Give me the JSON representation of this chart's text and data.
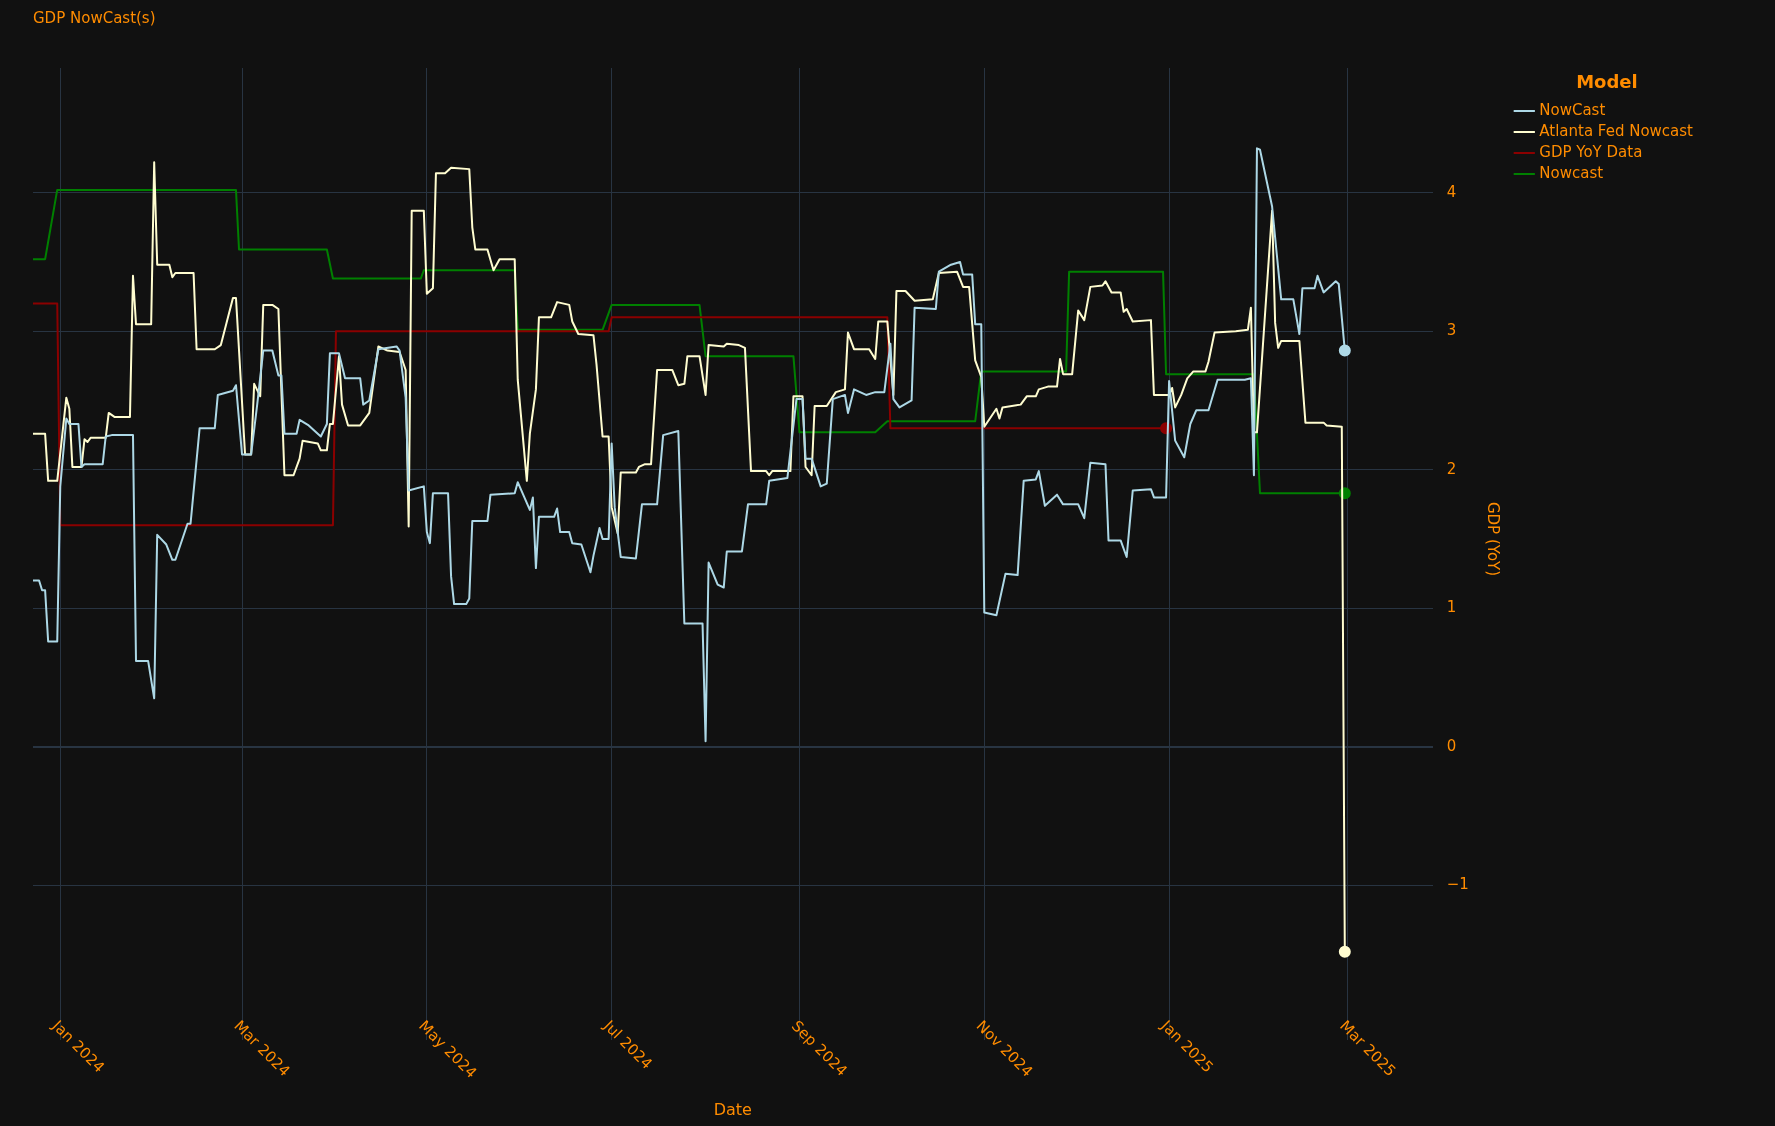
{
  "chart_data": {
    "type": "line",
    "title": "GDP NowCast(s)",
    "xlabel": "Date",
    "ylabel": "GDP (YoY)",
    "legend_title": "Model",
    "legend": "top right",
    "grid": true,
    "line_style": "solid",
    "xlim": [
      "2023-12-23",
      "2025-03-29"
    ],
    "xticks": [
      {
        "value": "2024-01-01",
        "label": "Jan 2024"
      },
      {
        "value": "2024-03-01",
        "label": "Mar 2024"
      },
      {
        "value": "2024-05-01",
        "label": "May 2024"
      },
      {
        "value": "2024-07-01",
        "label": "Jul 2024"
      },
      {
        "value": "2024-09-01",
        "label": "Sep 2024"
      },
      {
        "value": "2024-11-01",
        "label": "Nov 2024"
      },
      {
        "value": "2025-01-01",
        "label": "Jan 2025"
      },
      {
        "value": "2025-03-01",
        "label": "Mar 2025"
      }
    ],
    "ylim": [
      -1.9,
      4.9
    ],
    "yticks": [
      {
        "value": -1,
        "label": "−1"
      },
      0,
      1,
      2,
      3,
      4
    ],
    "series": [
      {
        "name": "NowCast",
        "color": "#add8e6",
        "x": [
          "2023-12-23",
          "2023-12-25",
          "2023-12-26",
          "2023-12-27",
          "2023-12-28",
          "2023-12-31",
          "2024-01-01",
          "2024-01-03",
          "2024-01-04",
          "2024-01-07",
          "2024-01-08",
          "2024-01-09",
          "2024-01-15",
          "2024-01-16",
          "2024-01-18",
          "2024-01-25",
          "2024-01-26",
          "2024-01-30",
          "2024-02-01",
          "2024-02-02",
          "2024-02-05",
          "2024-02-07",
          "2024-02-08",
          "2024-02-12",
          "2024-02-13",
          "2024-02-16",
          "2024-02-21",
          "2024-02-22",
          "2024-02-27",
          "2024-02-28",
          "2024-03-01",
          "2024-03-04",
          "2024-03-06",
          "2024-03-08",
          "2024-03-11",
          "2024-03-13",
          "2024-03-14",
          "2024-03-15",
          "2024-03-19",
          "2024-03-20",
          "2024-03-23",
          "2024-03-27",
          "2024-03-29",
          "2024-03-30",
          "2024-04-02",
          "2024-04-04",
          "2024-04-09",
          "2024-04-10",
          "2024-04-12",
          "2024-04-15",
          "2024-04-21",
          "2024-04-22",
          "2024-04-24",
          "2024-04-25",
          "2024-04-30",
          "2024-05-01",
          "2024-05-02",
          "2024-05-03",
          "2024-05-08",
          "2024-05-09",
          "2024-05-10",
          "2024-05-14",
          "2024-05-15",
          "2024-05-16",
          "2024-05-21",
          "2024-05-22",
          "2024-05-30",
          "2024-05-31",
          "2024-06-04",
          "2024-06-05",
          "2024-06-06",
          "2024-06-07",
          "2024-06-12",
          "2024-06-13",
          "2024-06-14",
          "2024-06-17",
          "2024-06-18",
          "2024-06-21",
          "2024-06-24",
          "2024-06-25",
          "2024-06-27",
          "2024-06-28",
          "2024-06-30",
          "2024-07-01",
          "2024-07-02",
          "2024-07-04",
          "2024-07-09",
          "2024-07-11",
          "2024-07-16",
          "2024-07-18",
          "2024-07-23",
          "2024-07-25",
          "2024-07-31",
          "2024-08-01",
          "2024-08-02",
          "2024-08-05",
          "2024-08-07",
          "2024-08-08",
          "2024-08-13",
          "2024-08-15",
          "2024-08-21",
          "2024-08-22",
          "2024-08-28",
          "2024-08-31",
          "2024-09-02",
          "2024-09-03",
          "2024-09-05",
          "2024-09-08",
          "2024-09-10",
          "2024-09-12",
          "2024-09-16",
          "2024-09-17",
          "2024-09-19",
          "2024-09-23",
          "2024-09-26",
          "2024-09-29",
          "2024-10-01",
          "2024-10-02",
          "2024-10-04",
          "2024-10-08",
          "2024-10-09",
          "2024-10-16",
          "2024-10-17",
          "2024-10-21",
          "2024-10-24",
          "2024-10-25",
          "2024-10-28",
          "2024-10-29",
          "2024-10-31",
          "2024-11-01",
          "2024-11-05",
          "2024-11-08",
          "2024-11-12",
          "2024-11-14",
          "2024-11-18",
          "2024-11-19",
          "2024-11-21",
          "2024-11-25",
          "2024-11-27",
          "2024-12-02",
          "2024-12-04",
          "2024-12-06",
          "2024-12-11",
          "2024-12-12",
          "2024-12-16",
          "2024-12-18",
          "2024-12-20",
          "2024-12-26",
          "2024-12-27",
          "2024-12-31",
          "2025-01-01",
          "2025-01-03",
          "2025-01-06",
          "2025-01-08",
          "2025-01-10",
          "2025-01-14",
          "2025-01-17",
          "2025-01-26",
          "2025-01-28",
          "2025-01-29",
          "2025-01-30",
          "2025-01-31",
          "2025-02-04",
          "2025-02-07",
          "2025-02-11",
          "2025-02-13",
          "2025-02-14",
          "2025-02-18",
          "2025-02-19",
          "2025-02-21",
          "2025-02-25",
          "2025-02-26",
          "2025-02-28"
        ],
        "values": [
          1.2,
          1.2,
          1.13,
          1.13,
          0.76,
          0.76,
          1.88,
          2.37,
          2.33,
          2.33,
          2.02,
          2.04,
          2.04,
          2.24,
          2.25,
          2.25,
          0.62,
          0.62,
          0.35,
          1.53,
          1.46,
          1.35,
          1.35,
          1.61,
          1.61,
          2.3,
          2.3,
          2.54,
          2.57,
          2.61,
          2.11,
          2.11,
          2.47,
          2.86,
          2.86,
          2.68,
          2.68,
          2.26,
          2.26,
          2.36,
          2.32,
          2.24,
          2.33,
          2.84,
          2.84,
          2.66,
          2.66,
          2.47,
          2.5,
          2.87,
          2.89,
          2.86,
          2.52,
          1.85,
          1.88,
          1.55,
          1.47,
          1.83,
          1.83,
          1.23,
          1.03,
          1.03,
          1.07,
          1.63,
          1.63,
          1.82,
          1.83,
          1.91,
          1.71,
          1.8,
          1.29,
          1.66,
          1.66,
          1.72,
          1.55,
          1.55,
          1.47,
          1.46,
          1.26,
          1.38,
          1.58,
          1.5,
          1.5,
          2.19,
          1.73,
          1.37,
          1.36,
          1.75,
          1.75,
          2.25,
          2.28,
          0.89,
          0.89,
          0.04,
          1.33,
          1.17,
          1.15,
          1.41,
          1.41,
          1.75,
          1.75,
          1.92,
          1.94,
          2.51,
          2.51,
          2.08,
          2.08,
          1.88,
          1.9,
          2.51,
          2.54,
          2.41,
          2.58,
          2.54,
          2.56,
          2.56,
          2.91,
          2.51,
          2.45,
          2.5,
          3.17,
          3.16,
          3.43,
          3.48,
          3.5,
          3.41,
          3.41,
          3.05,
          3.05,
          0.97,
          0.95,
          1.25,
          1.24,
          1.92,
          1.93,
          1.99,
          1.74,
          1.82,
          1.75,
          1.75,
          1.65,
          2.05,
          2.04,
          1.49,
          1.49,
          1.37,
          1.85,
          1.86,
          1.8,
          1.8,
          2.64,
          2.21,
          2.09,
          2.33,
          2.43,
          2.43,
          2.65,
          2.65,
          2.66,
          1.96,
          4.32,
          4.31,
          3.9,
          3.23,
          3.23,
          2.98,
          3.31,
          3.31,
          3.4,
          3.28,
          3.36,
          3.34,
          2.86
        ]
      },
      {
        "name": "Atlanta Fed Nowcast",
        "color": "#fffdd0",
        "x": [
          "2023-12-23",
          "2023-12-27",
          "2023-12-28",
          "2023-12-31",
          "2024-01-03",
          "2024-01-04",
          "2024-01-05",
          "2024-01-08",
          "2024-01-09",
          "2024-01-10",
          "2024-01-11",
          "2024-01-16",
          "2024-01-17",
          "2024-01-19",
          "2024-01-24",
          "2024-01-25",
          "2024-01-26",
          "2024-01-31",
          "2024-02-01",
          "2024-02-02",
          "2024-02-06",
          "2024-02-07",
          "2024-02-08",
          "2024-02-14",
          "2024-02-15",
          "2024-02-21",
          "2024-02-23",
          "2024-02-27",
          "2024-02-28",
          "2024-03-02",
          "2024-03-04",
          "2024-03-05",
          "2024-03-07",
          "2024-03-08",
          "2024-03-11",
          "2024-03-13",
          "2024-03-15",
          "2024-03-18",
          "2024-03-20",
          "2024-03-21",
          "2024-03-26",
          "2024-03-27",
          "2024-03-29",
          "2024-03-30",
          "2024-03-31",
          "2024-04-02",
          "2024-04-03",
          "2024-04-05",
          "2024-04-09",
          "2024-04-12",
          "2024-04-15",
          "2024-04-18",
          "2024-04-22",
          "2024-04-24",
          "2024-04-25",
          "2024-04-26",
          "2024-04-30",
          "2024-05-01",
          "2024-05-03",
          "2024-05-04",
          "2024-05-07",
          "2024-05-09",
          "2024-05-15",
          "2024-05-16",
          "2024-05-17",
          "2024-05-21",
          "2024-05-23",
          "2024-05-25",
          "2024-05-30",
          "2024-05-31",
          "2024-06-03",
          "2024-06-04",
          "2024-06-06",
          "2024-06-07",
          "2024-06-11",
          "2024-06-13",
          "2024-06-17",
          "2024-06-18",
          "2024-06-20",
          "2024-06-25",
          "2024-06-26",
          "2024-06-28",
          "2024-06-30",
          "2024-07-01",
          "2024-07-03",
          "2024-07-04",
          "2024-07-09",
          "2024-07-10",
          "2024-07-12",
          "2024-07-14",
          "2024-07-16",
          "2024-07-21",
          "2024-07-23",
          "2024-07-25",
          "2024-07-26",
          "2024-07-30",
          "2024-08-01",
          "2024-08-02",
          "2024-08-07",
          "2024-08-08",
          "2024-08-12",
          "2024-08-14",
          "2024-08-16",
          "2024-08-21",
          "2024-08-22",
          "2024-08-23",
          "2024-08-29",
          "2024-08-30",
          "2024-09-02",
          "2024-09-03",
          "2024-09-05",
          "2024-09-06",
          "2024-09-10",
          "2024-09-13",
          "2024-09-16",
          "2024-09-17",
          "2024-09-19",
          "2024-09-24",
          "2024-09-26",
          "2024-09-27",
          "2024-09-30",
          "2024-10-02",
          "2024-10-03",
          "2024-10-06",
          "2024-10-09",
          "2024-10-15",
          "2024-10-17",
          "2024-10-23",
          "2024-10-25",
          "2024-10-27",
          "2024-10-29",
          "2024-10-31",
          "2024-11-01",
          "2024-11-05",
          "2024-11-06",
          "2024-11-07",
          "2024-11-13",
          "2024-11-15",
          "2024-11-18",
          "2024-11-19",
          "2024-11-22",
          "2024-11-25",
          "2024-11-26",
          "2024-11-27",
          "2024-11-30",
          "2024-12-02",
          "2024-12-04",
          "2024-12-06",
          "2024-12-10",
          "2024-12-11",
          "2024-12-13",
          "2024-12-16",
          "2024-12-17",
          "2024-12-18",
          "2024-12-20",
          "2024-12-26",
          "2024-12-27",
          "2025-01-01",
          "2025-01-02",
          "2025-01-03",
          "2025-01-05",
          "2025-01-07",
          "2025-01-09",
          "2025-01-13",
          "2025-01-14",
          "2025-01-16",
          "2025-01-23",
          "2025-01-27",
          "2025-01-28",
          "2025-01-29",
          "2025-01-30",
          "2025-02-04",
          "2025-02-05",
          "2025-02-06",
          "2025-02-07",
          "2025-02-13",
          "2025-02-15",
          "2025-02-21",
          "2025-02-22",
          "2025-02-27",
          "2025-02-28"
        ],
        "values": [
          2.26,
          2.26,
          1.92,
          1.92,
          2.52,
          2.44,
          2.02,
          2.02,
          2.22,
          2.2,
          2.23,
          2.23,
          2.41,
          2.38,
          2.38,
          3.4,
          3.05,
          3.05,
          4.22,
          3.48,
          3.48,
          3.39,
          3.42,
          3.42,
          2.87,
          2.87,
          2.9,
          3.24,
          3.24,
          2.11,
          2.11,
          2.62,
          2.53,
          3.19,
          3.19,
          3.16,
          1.96,
          1.96,
          2.08,
          2.21,
          2.19,
          2.14,
          2.14,
          2.33,
          2.33,
          2.82,
          2.47,
          2.32,
          2.32,
          2.41,
          2.89,
          2.86,
          2.85,
          2.72,
          1.59,
          3.87,
          3.87,
          3.27,
          3.31,
          4.14,
          4.14,
          4.18,
          4.17,
          3.75,
          3.59,
          3.59,
          3.44,
          3.52,
          3.52,
          2.65,
          1.92,
          2.26,
          2.58,
          3.1,
          3.1,
          3.21,
          3.19,
          3.07,
          2.98,
          2.97,
          2.76,
          2.24,
          2.24,
          1.73,
          1.54,
          1.98,
          1.98,
          2.02,
          2.04,
          2.04,
          2.72,
          2.72,
          2.61,
          2.62,
          2.82,
          2.82,
          2.54,
          2.9,
          2.89,
          2.91,
          2.9,
          2.88,
          1.99,
          1.99,
          1.96,
          1.99,
          1.99,
          2.53,
          2.53,
          2.02,
          1.96,
          2.46,
          2.46,
          2.56,
          2.58,
          2.99,
          2.87,
          2.87,
          2.8,
          3.07,
          3.07,
          2.54,
          3.29,
          3.29,
          3.22,
          3.23,
          3.42,
          3.43,
          3.32,
          3.32,
          2.79,
          2.67,
          2.31,
          2.44,
          2.37,
          2.45,
          2.47,
          2.53,
          2.53,
          2.58,
          2.6,
          2.6,
          2.8,
          2.69,
          2.69,
          3.15,
          3.08,
          3.32,
          3.33,
          3.36,
          3.28,
          3.28,
          3.14,
          3.16,
          3.07,
          3.08,
          2.54,
          2.54,
          2.59,
          2.45,
          2.54,
          2.66,
          2.71,
          2.71,
          2.78,
          2.99,
          3.0,
          3.01,
          3.17,
          2.27,
          2.27,
          3.87,
          3.06,
          2.88,
          2.93,
          2.93,
          2.34,
          2.34,
          2.32,
          2.31,
          -1.48
        ]
      },
      {
        "name": "GDP YoY Data",
        "color": "#8b0000",
        "x": [
          "2023-12-23",
          "2023-12-31",
          "2024-01-01",
          "2024-03-31",
          "2024-04-01",
          "2024-06-30",
          "2024-07-01",
          "2024-09-30",
          "2024-10-01",
          "2024-12-31"
        ],
        "values": [
          3.2,
          3.2,
          1.6,
          1.6,
          3.0,
          3.0,
          3.1,
          3.1,
          2.3,
          2.3
        ]
      },
      {
        "name": "Nowcast",
        "color": "#008000",
        "x": [
          "2023-12-23",
          "2023-12-27",
          "2023-12-31",
          "2024-02-28",
          "2024-02-29",
          "2024-03-29",
          "2024-03-31",
          "2024-04-29",
          "2024-04-30",
          "2024-05-30",
          "2024-05-31",
          "2024-06-28",
          "2024-07-01",
          "2024-07-30",
          "2024-08-01",
          "2024-08-30",
          "2024-09-01",
          "2024-09-26",
          "2024-09-30",
          "2024-10-29",
          "2024-10-31",
          "2024-11-28",
          "2024-11-29",
          "2024-12-30",
          "2024-12-31",
          "2025-01-29",
          "2025-01-31",
          "2025-02-28"
        ],
        "values": [
          3.52,
          3.52,
          4.02,
          4.02,
          3.59,
          3.59,
          3.38,
          3.38,
          3.44,
          3.44,
          3.01,
          3.01,
          3.19,
          3.19,
          2.82,
          2.82,
          2.27,
          2.27,
          2.35,
          2.35,
          2.71,
          2.71,
          3.43,
          3.43,
          2.69,
          2.69,
          1.83,
          1.83
        ]
      }
    ]
  }
}
